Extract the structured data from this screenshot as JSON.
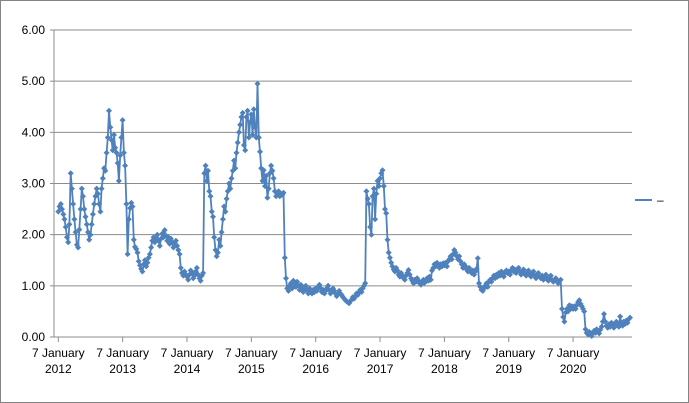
{
  "window": {
    "background": "#FFFFFF",
    "border_color": "#848484"
  },
  "chart_data": {
    "type": "line",
    "title": "",
    "grid": {
      "horizontal": true,
      "vertical": false,
      "color": "#8C8C8C"
    },
    "x_axis": {
      "label": "",
      "interval": "weekly points, yearly ticks",
      "ticks": [
        {
          "l1": "7 January",
          "l2": "2012"
        },
        {
          "l1": "7 January",
          "l2": "2013"
        },
        {
          "l1": "7 January",
          "l2": "2014"
        },
        {
          "l1": "7 January",
          "l2": "2015"
        },
        {
          "l1": "7 January",
          "l2": "2016"
        },
        {
          "l1": "7 January",
          "l2": "2017"
        },
        {
          "l1": "7 January",
          "l2": "2018"
        },
        {
          "l1": "7 January",
          "l2": "2019"
        },
        {
          "l1": "7 January",
          "l2": "2020"
        }
      ]
    },
    "y_axis": {
      "label": "",
      "min": 0,
      "max": 6,
      "tick_step": 1,
      "tick_labels": [
        "0.00",
        "1.00",
        "2.00",
        "3.00",
        "4.00",
        "5.00",
        "6.00"
      ]
    },
    "legend": {
      "position": "right",
      "label": "–",
      "line_color": "#4F81BD"
    },
    "series": [
      {
        "name": "–",
        "color": "#4F81BD",
        "marker": "diamond",
        "start": "7 January 2012",
        "points_per_year": 52,
        "values": [
          2.45,
          2.55,
          2.6,
          2.5,
          2.4,
          2.3,
          2.15,
          1.95,
          1.85,
          2.2,
          3.2,
          2.9,
          2.6,
          2.3,
          2.05,
          1.8,
          1.75,
          2.1,
          2.5,
          2.9,
          2.75,
          2.5,
          2.35,
          2.2,
          2.05,
          1.9,
          2.0,
          2.2,
          2.4,
          2.6,
          2.75,
          2.9,
          2.8,
          2.6,
          2.45,
          2.9,
          3.1,
          3.3,
          3.25,
          3.6,
          3.9,
          4.42,
          4.1,
          3.85,
          3.65,
          3.95,
          3.7,
          3.6,
          3.4,
          3.05,
          3.55,
          3.9,
          4.24,
          3.6,
          3.35,
          2.6,
          1.62,
          2.3,
          2.52,
          2.62,
          2.55,
          1.9,
          1.76,
          1.72,
          1.65,
          1.48,
          1.4,
          1.33,
          1.28,
          1.42,
          1.5,
          1.38,
          1.45,
          1.55,
          1.62,
          1.75,
          1.88,
          1.95,
          1.85,
          1.92,
          2.0,
          1.88,
          1.78,
          1.92,
          2.02,
          1.95,
          2.09,
          1.98,
          1.88,
          1.95,
          1.82,
          1.92,
          1.85,
          1.75,
          1.8,
          1.88,
          1.78,
          1.7,
          1.62,
          1.35,
          1.25,
          1.2,
          1.28,
          1.22,
          1.18,
          1.12,
          1.22,
          1.3,
          1.25,
          1.15,
          1.2,
          1.28,
          1.35,
          1.22,
          1.15,
          1.1,
          1.2,
          1.25,
          3.2,
          3.35,
          3.05,
          3.25,
          2.85,
          2.75,
          2.45,
          2.35,
          1.95,
          1.7,
          1.58,
          1.65,
          1.9,
          1.78,
          2.05,
          2.3,
          2.55,
          2.45,
          2.7,
          2.85,
          3.0,
          2.9,
          3.1,
          3.25,
          3.45,
          3.3,
          3.6,
          3.8,
          4.0,
          4.15,
          4.3,
          4.38,
          3.75,
          3.65,
          4.3,
          4.42,
          3.9,
          4.2,
          4.35,
          3.95,
          4.45,
          4.1,
          3.9,
          4.95,
          3.9,
          3.62,
          3.3,
          3.05,
          3.26,
          2.95,
          3.15,
          2.72,
          2.9,
          3.2,
          3.35,
          3.25,
          3.1,
          2.85,
          2.75,
          2.8,
          2.85,
          2.75,
          2.8,
          2.78,
          2.82,
          1.55,
          1.15,
          0.95,
          0.9,
          1.0,
          1.05,
          0.95,
          1.1,
          1.05,
          0.98,
          1.08,
          1.0,
          0.92,
          1.02,
          0.95,
          0.88,
          0.95,
          1.0,
          0.92,
          0.85,
          0.95,
          0.9,
          0.85,
          0.92,
          0.88,
          0.95,
          0.9,
          0.98,
          1.02,
          0.95,
          0.88,
          0.92,
          0.85,
          0.9,
          0.95,
          1.0,
          0.92,
          0.85,
          0.88,
          0.95,
          0.9,
          0.85,
          0.8,
          0.85,
          0.9,
          0.85,
          0.82,
          0.78,
          0.75,
          0.72,
          0.7,
          0.68,
          0.66,
          0.7,
          0.73,
          0.78,
          0.75,
          0.8,
          0.85,
          0.82,
          0.88,
          0.92,
          0.88,
          0.95,
          1.0,
          1.05,
          2.85,
          2.7,
          2.6,
          2.15,
          2.0,
          2.75,
          2.9,
          2.3,
          2.8,
          3.05,
          2.95,
          3.1,
          3.2,
          3.26,
          2.95,
          2.5,
          2.42,
          1.9,
          1.65,
          1.55,
          1.45,
          1.38,
          1.32,
          1.28,
          1.35,
          1.3,
          1.22,
          1.18,
          1.25,
          1.2,
          1.15,
          1.12,
          1.2,
          1.25,
          1.31,
          1.22,
          1.15,
          1.1,
          1.05,
          1.12,
          1.08,
          1.15,
          1.1,
          1.05,
          1.02,
          1.08,
          1.12,
          1.06,
          1.1,
          1.15,
          1.1,
          1.18,
          1.12,
          1.3,
          1.35,
          1.42,
          1.38,
          1.45,
          1.4,
          1.35,
          1.42,
          1.38,
          1.44,
          1.4,
          1.45,
          1.38,
          1.48,
          1.52,
          1.58,
          1.52,
          1.62,
          1.7,
          1.65,
          1.58,
          1.52,
          1.58,
          1.48,
          1.42,
          1.35,
          1.42,
          1.38,
          1.32,
          1.28,
          1.35,
          1.3,
          1.25,
          1.3,
          1.22,
          1.28,
          1.33,
          1.54,
          1.05,
          0.98,
          0.92,
          0.9,
          0.95,
          1.0,
          1.05,
          0.98,
          1.08,
          1.12,
          1.08,
          1.15,
          1.2,
          1.15,
          1.22,
          1.18,
          1.25,
          1.2,
          1.28,
          1.22,
          1.18,
          1.25,
          1.3,
          1.25,
          1.28,
          1.22,
          1.3,
          1.35,
          1.28,
          1.32,
          1.25,
          1.3,
          1.35,
          1.28,
          1.22,
          1.28,
          1.32,
          1.25,
          1.2,
          1.25,
          1.3,
          1.22,
          1.18,
          1.25,
          1.28,
          1.2,
          1.15,
          1.22,
          1.25,
          1.18,
          1.15,
          1.2,
          1.12,
          1.18,
          1.22,
          1.15,
          1.1,
          1.15,
          1.2,
          1.12,
          1.08,
          1.12,
          1.15,
          1.1,
          1.05,
          1.1,
          1.12,
          0.55,
          0.39,
          0.3,
          0.48,
          0.55,
          0.5,
          0.62,
          0.55,
          0.6,
          0.55,
          0.6,
          0.55,
          0.62,
          0.68,
          0.72,
          0.65,
          0.6,
          0.55,
          0.5,
          0.15,
          0.08,
          0.05,
          0.1,
          0.06,
          0.02,
          0.08,
          0.12,
          0.08,
          0.15,
          0.1,
          0.07,
          0.14,
          0.2,
          0.3,
          0.45,
          0.3,
          0.22,
          0.18,
          0.25,
          0.2,
          0.28,
          0.22,
          0.18,
          0.25,
          0.3,
          0.24,
          0.2,
          0.4,
          0.28,
          0.22,
          0.3,
          0.26,
          0.32,
          0.28,
          0.35,
          0.38
        ]
      }
    ]
  }
}
